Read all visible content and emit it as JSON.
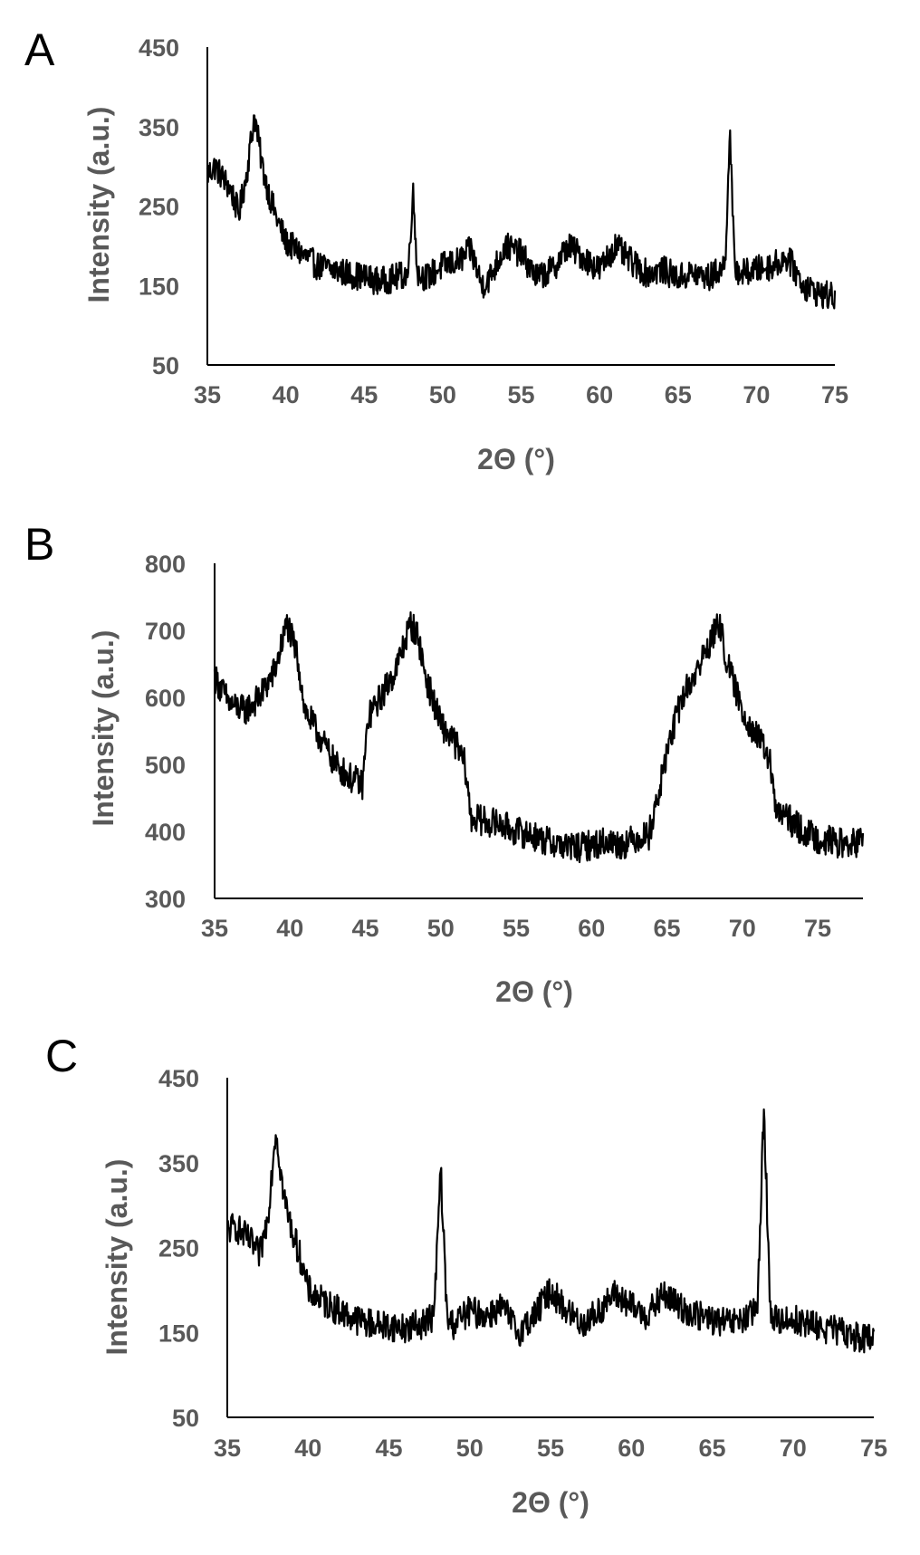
{
  "chart_data": [
    {
      "type": "line",
      "panel": "A",
      "xlabel": "2Θ (°)",
      "ylabel": "Intensity (a.u.)",
      "xlim": [
        35,
        75
      ],
      "ylim": [
        50,
        450
      ],
      "xticks": [
        "35",
        "40",
        "45",
        "50",
        "55",
        "60",
        "65",
        "70",
        "75"
      ],
      "yticks": [
        "50",
        "150",
        "250",
        "350",
        "450"
      ],
      "grid": false,
      "series": [
        {
          "x": [
            35,
            35.5,
            36,
            36.5,
            37,
            37.5,
            38,
            38.5,
            39,
            39.5,
            40,
            41,
            42,
            43,
            44,
            45,
            46,
            47,
            47.8,
            48.1,
            48.4,
            49,
            50,
            51,
            51.8,
            52.5,
            53,
            54,
            55,
            56,
            57,
            58,
            59,
            60,
            61,
            62,
            63,
            64,
            65,
            66,
            67,
            68,
            68.3,
            68.6,
            69,
            70,
            71,
            72,
            73,
            74,
            75
          ],
          "y": [
            290,
            300,
            285,
            270,
            240,
            290,
            365,
            300,
            260,
            230,
            205,
            190,
            175,
            170,
            165,
            160,
            155,
            160,
            165,
            270,
            165,
            160,
            175,
            180,
            195,
            150,
            160,
            200,
            190,
            160,
            170,
            200,
            185,
            170,
            200,
            180,
            165,
            170,
            160,
            165,
            160,
            175,
            345,
            175,
            165,
            170,
            175,
            185,
            150,
            140,
            135
          ]
        }
      ]
    },
    {
      "type": "line",
      "panel": "B",
      "xlabel": "2Θ (°)",
      "ylabel": "Intensity (a.u.)",
      "xlim": [
        35,
        78
      ],
      "ylim": [
        300,
        800
      ],
      "xticks": [
        "35",
        "40",
        "45",
        "50",
        "55",
        "60",
        "65",
        "70",
        "75"
      ],
      "yticks": [
        "300",
        "400",
        "500",
        "600",
        "700",
        "800"
      ],
      "grid": false,
      "series": [
        {
          "x": [
            35,
            36,
            37,
            38,
            39,
            39.8,
            40.5,
            41,
            42,
            43,
            44,
            44.8,
            45.2,
            46,
            47,
            48,
            48.5,
            49,
            50,
            51,
            51.6,
            52,
            53,
            54,
            55,
            56,
            57,
            58,
            59,
            60,
            61,
            62,
            63,
            63.8,
            64.5,
            65,
            66,
            67,
            68,
            68.5,
            69,
            70,
            71,
            71.8,
            72.2,
            73,
            74,
            75,
            76,
            77,
            78
          ],
          "y": [
            630,
            590,
            580,
            600,
            640,
            710,
            660,
            580,
            540,
            500,
            480,
            470,
            570,
            600,
            640,
            710,
            690,
            630,
            560,
            530,
            500,
            420,
            415,
            410,
            400,
            395,
            385,
            380,
            375,
            380,
            385,
            380,
            390,
            395,
            460,
            520,
            600,
            640,
            690,
            710,
            650,
            580,
            540,
            510,
            430,
            420,
            400,
            390,
            385,
            380,
            385
          ]
        }
      ]
    },
    {
      "type": "line",
      "panel": "C",
      "xlabel": "2Θ (°)",
      "ylabel": "Intensity (a.u.)",
      "xlim": [
        35,
        75
      ],
      "ylim": [
        50,
        450
      ],
      "xticks": [
        "35",
        "40",
        "45",
        "50",
        "55",
        "60",
        "65",
        "70",
        "75"
      ],
      "yticks": [
        "50",
        "150",
        "250",
        "350",
        "450"
      ],
      "grid": false,
      "series": [
        {
          "x": [
            35,
            35.5,
            36,
            36.5,
            37,
            37.5,
            38,
            38.5,
            39,
            39.5,
            40,
            41,
            42,
            43,
            44,
            45,
            46,
            47,
            47.8,
            48.2,
            48.6,
            49,
            50,
            51,
            52,
            53,
            54,
            55,
            56,
            57,
            58,
            59,
            60,
            61,
            62,
            63,
            64,
            65,
            66,
            67,
            67.8,
            68.2,
            68.6,
            69,
            70,
            71,
            72,
            73,
            74,
            75
          ],
          "y": [
            270,
            275,
            265,
            255,
            240,
            285,
            390,
            310,
            270,
            240,
            200,
            185,
            175,
            165,
            160,
            158,
            155,
            160,
            170,
            345,
            165,
            160,
            175,
            170,
            180,
            150,
            170,
            200,
            175,
            160,
            175,
            195,
            180,
            170,
            195,
            180,
            170,
            165,
            160,
            165,
            175,
            420,
            170,
            165,
            165,
            160,
            155,
            150,
            145,
            140
          ]
        }
      ]
    }
  ]
}
